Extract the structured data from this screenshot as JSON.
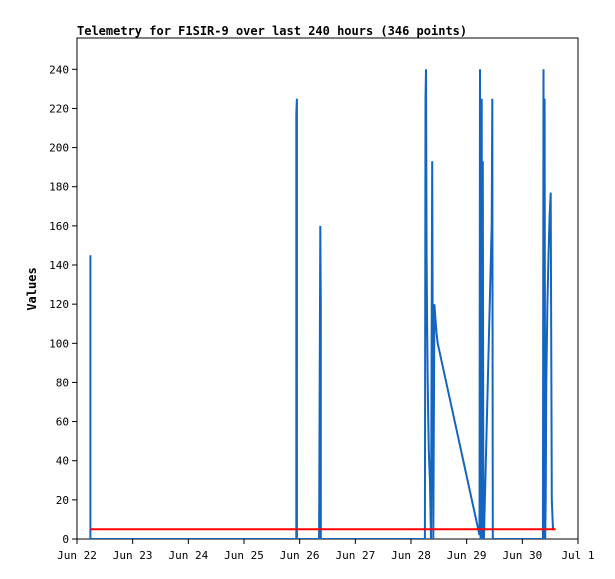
{
  "chart_data": {
    "type": "line",
    "title": "Telemetry for F1SIR-9 over last 240 hours (346 points)",
    "xlabel": "",
    "ylabel": "Values",
    "ylim": [
      0,
      256
    ],
    "yticks": [
      0,
      20,
      40,
      60,
      80,
      100,
      120,
      140,
      160,
      180,
      200,
      220,
      240
    ],
    "xlim": [
      0,
      9
    ],
    "xticks": [
      {
        "value": 0,
        "label": "Jun 22"
      },
      {
        "value": 1,
        "label": "Jun 23"
      },
      {
        "value": 2,
        "label": "Jun 24"
      },
      {
        "value": 3,
        "label": "Jun 25"
      },
      {
        "value": 4,
        "label": "Jun 26"
      },
      {
        "value": 5,
        "label": "Jun 27"
      },
      {
        "value": 6,
        "label": "Jun 28"
      },
      {
        "value": 7,
        "label": "Jun 29"
      },
      {
        "value": 8,
        "label": "Jun 30"
      },
      {
        "value": 9,
        "label": "Jul 1"
      }
    ],
    "grid": false,
    "legend": "none",
    "series": [
      {
        "color": "#1565c0",
        "x": [
          0.24,
          0.24,
          0.24,
          3.94,
          3.94,
          3.95,
          3.95,
          3.95,
          4.35,
          4.36,
          4.37,
          4.38,
          4.38,
          6.25,
          6.26,
          6.27,
          6.28,
          6.29,
          6.3,
          6.31,
          6.32,
          6.34,
          6.36,
          6.38,
          6.4,
          6.42,
          6.44,
          6.46,
          6.48,
          7.23,
          7.24,
          7.25,
          7.27,
          7.28,
          7.29,
          7.3,
          7.31,
          7.45,
          7.46,
          7.47,
          8.37,
          8.38,
          8.39,
          8.4,
          8.41,
          8.42,
          8.43,
          8.45,
          8.47,
          8.49,
          8.51,
          8.53,
          8.55,
          8.56
        ],
        "y": [
          0,
          145,
          0,
          0,
          217,
          225,
          0,
          0,
          0,
          80,
          160,
          120,
          0,
          0,
          225,
          240,
          145,
          110,
          80,
          60,
          45,
          30,
          0,
          193,
          0,
          120,
          112,
          105,
          100,
          2,
          240,
          0,
          225,
          0,
          193,
          0,
          0,
          160,
          225,
          0,
          0,
          240,
          0,
          225,
          0,
          20,
          80,
          120,
          145,
          165,
          177,
          20,
          5,
          5
        ]
      },
      {
        "color": "#ff0000",
        "x": [
          0.24,
          8.6
        ],
        "y": [
          5,
          5
        ]
      }
    ]
  }
}
